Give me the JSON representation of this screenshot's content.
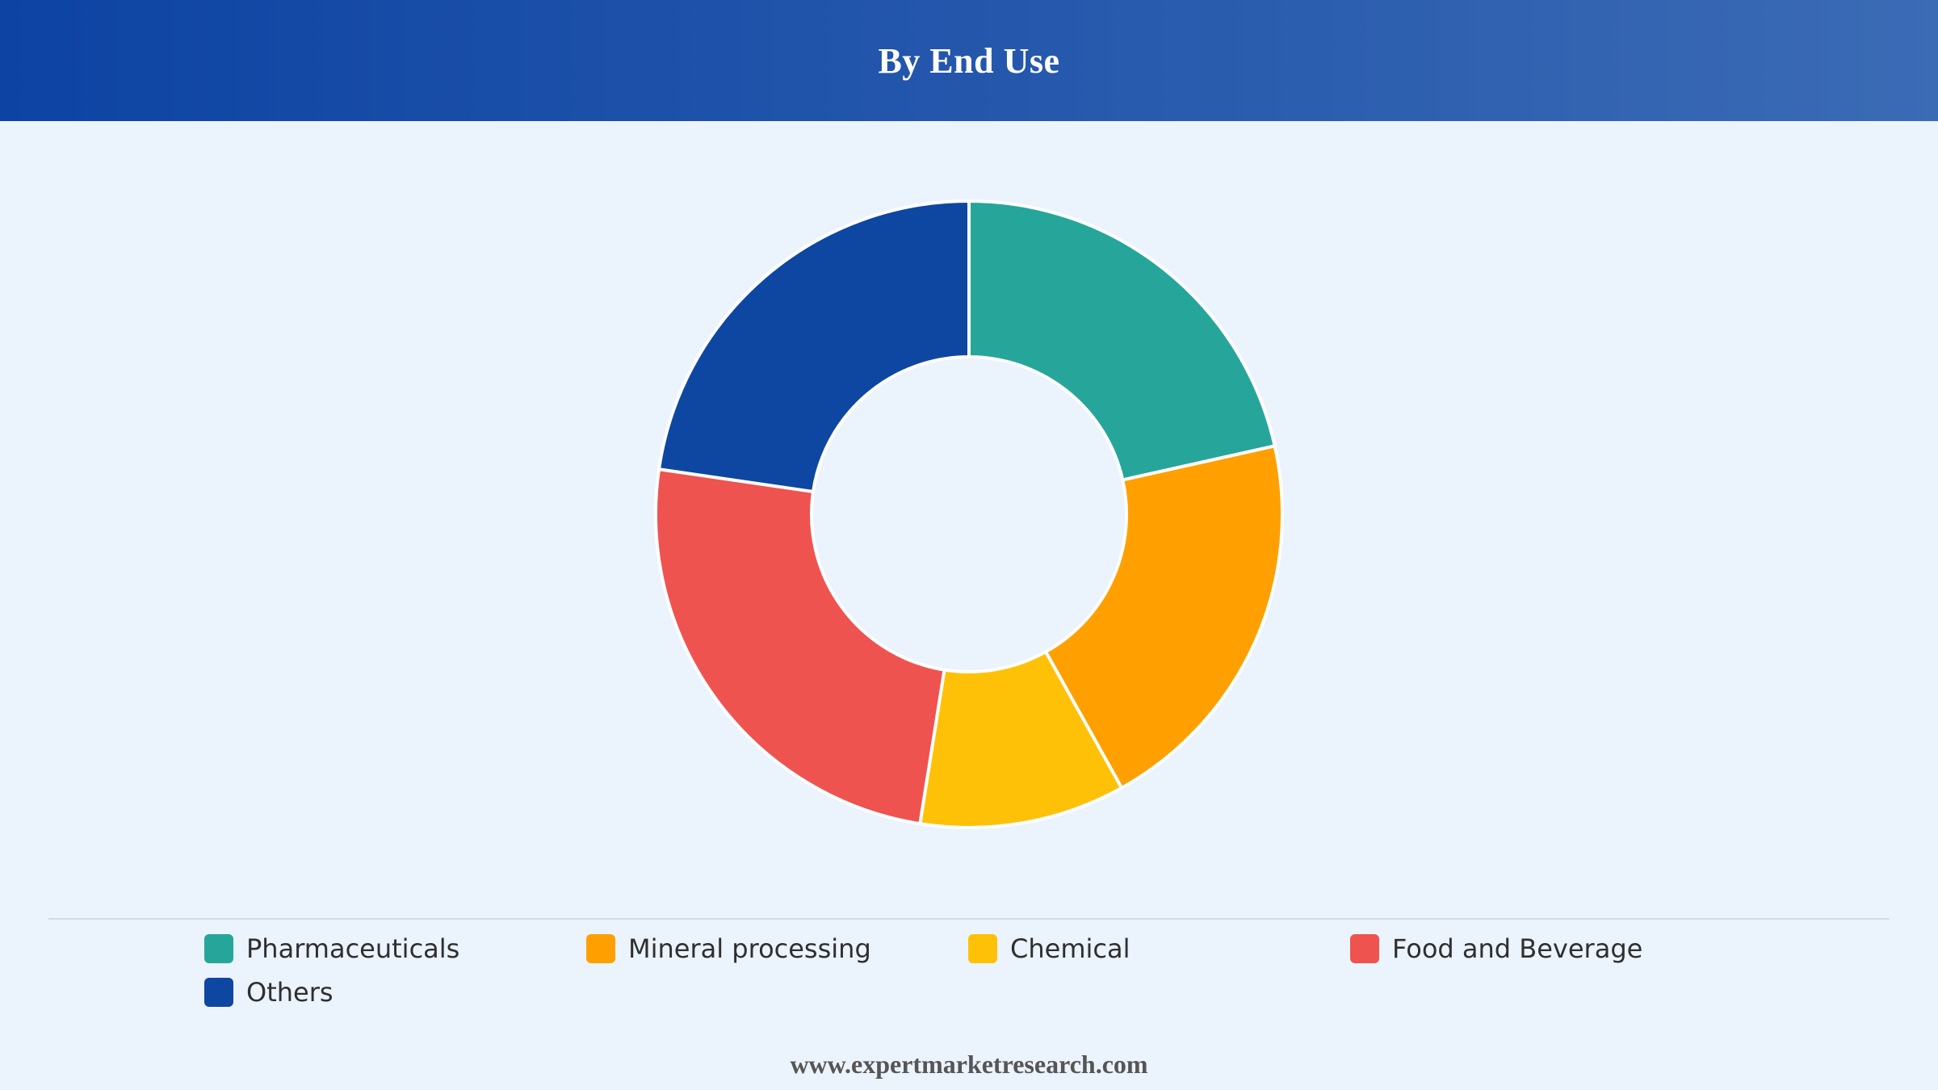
{
  "header": {
    "title": "By End Use",
    "gradient_start": "#0d43a3",
    "gradient_end": "#3b6bb5"
  },
  "chart_data": {
    "type": "pie",
    "style": "donut",
    "title": "By End Use",
    "categories": [
      "Pharmaceuticals",
      "Mineral processing",
      "Chemical",
      "Food and Beverage",
      "Others"
    ],
    "values": [
      21.5,
      20.4,
      10.6,
      24.8,
      22.7
    ],
    "unit": "%",
    "colors": [
      "#26a69a",
      "#ffa000",
      "#ffc107",
      "#ef5350",
      "#0d47a1"
    ],
    "legend_position": "bottom"
  },
  "legend": {
    "items": [
      {
        "label": "Pharmaceuticals",
        "color": "#26a69a"
      },
      {
        "label": "Mineral processing",
        "color": "#ffa000"
      },
      {
        "label": "Chemical",
        "color": "#ffc107"
      },
      {
        "label": "Food and Beverage",
        "color": "#ef5350"
      },
      {
        "label": "Others",
        "color": "#0d47a1"
      }
    ]
  },
  "footer": {
    "website": "www.expertmarketresearch.com"
  }
}
